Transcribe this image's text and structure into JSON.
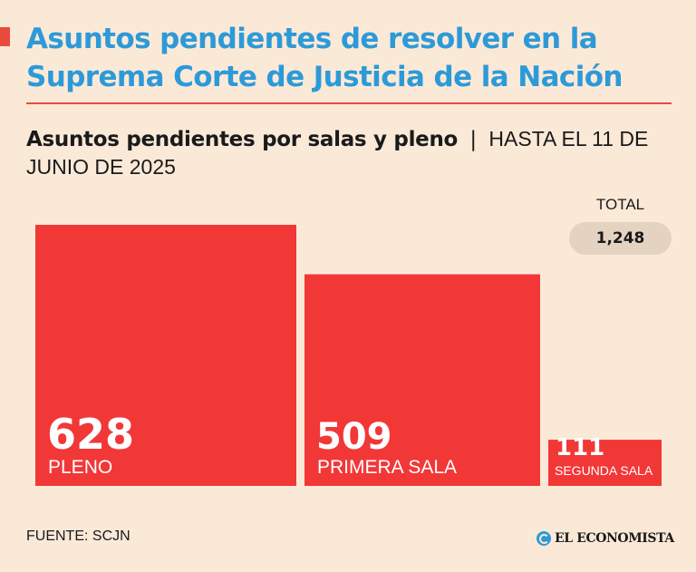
{
  "header": {
    "title": "Asuntos pendientes de resolver en la Suprema Corte de Justicia de la Nación",
    "subtitle_bold": "Asuntos pendientes por salas y pleno",
    "subtitle_sep": "|",
    "subtitle_rest": "HASTA EL 11 DE JUNIO DE 2025"
  },
  "total": {
    "label": "TOTAL",
    "value": "1,248"
  },
  "chart_data": {
    "type": "bar",
    "categories": [
      "PLENO",
      "PRIMERA SALA",
      "SEGUNDA SALA"
    ],
    "values": [
      628,
      509,
      111
    ],
    "value_labels": [
      "628",
      "509",
      "111"
    ],
    "title": "Asuntos pendientes por salas y pleno",
    "colors": {
      "bar": "#f23737",
      "label": "#ffffff"
    }
  },
  "footer": {
    "source": "FUENTE: SCJN",
    "logo": "EL ECONOMISTA",
    "logo_icon": "el-economista-logo-icon"
  },
  "colors": {
    "background": "#fbe9d8",
    "title": "#2d9ad8",
    "accent": "#e84a3d",
    "pill": "#e5d3c2"
  }
}
